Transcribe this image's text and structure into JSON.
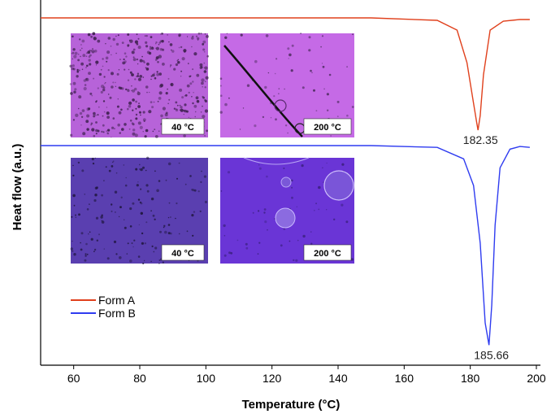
{
  "chart_data": {
    "type": "line",
    "xlabel": "Temperature (°C)",
    "ylabel": "Heat flow (a.u.)",
    "xlim": [
      50,
      200
    ],
    "xticks": [
      60,
      80,
      100,
      120,
      140,
      160,
      180,
      200
    ],
    "yticks_shown": false,
    "grid": false,
    "legend_position": "bottom-left",
    "series": [
      {
        "name": "Form A",
        "color": "#e0401c",
        "x": [
          50,
          100,
          150,
          170,
          176,
          179,
          181,
          182,
          182.35,
          183,
          184,
          186,
          190,
          195,
          198
        ],
        "y": [
          0.0,
          0.0,
          0.0,
          -0.03,
          -0.15,
          -0.55,
          -1.05,
          -1.3,
          -1.38,
          -1.2,
          -0.7,
          -0.15,
          -0.04,
          -0.02,
          -0.02
        ]
      },
      {
        "name": "Form B",
        "color": "#2f3cf0",
        "x": [
          50,
          100,
          150,
          170,
          178,
          181,
          183,
          184.5,
          185.66,
          186.5,
          187.5,
          189,
          192,
          195,
          198
        ],
        "y": [
          0.0,
          0.0,
          0.0,
          -0.04,
          -0.3,
          -0.9,
          -2.2,
          -4.0,
          -4.5,
          -3.6,
          -1.8,
          -0.5,
          -0.08,
          -0.02,
          -0.04
        ]
      }
    ],
    "annotations": [
      {
        "text": "182.35",
        "x": 182.35,
        "series": "Form A"
      },
      {
        "text": "185.66",
        "x": 185.66,
        "series": "Form B"
      }
    ]
  },
  "insets": [
    {
      "label": "40 °C",
      "form": "Form A",
      "color": "#b763d9",
      "speckle": "#3a1e4a"
    },
    {
      "label": "200 °C",
      "form": "Form A",
      "color": "#c56ae6",
      "speckle": "#4a2a5c"
    },
    {
      "label": "40 °C",
      "form": "Form B",
      "color": "#5a3fb0",
      "speckle": "#1c1438"
    },
    {
      "label": "200 °C",
      "form": "Form B",
      "color": "#6a35d6",
      "speckle": "#3b2080"
    }
  ]
}
